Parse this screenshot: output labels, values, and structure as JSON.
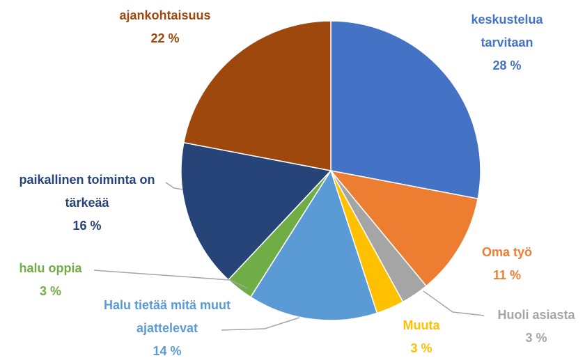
{
  "chart_data": {
    "type": "pie",
    "categories": [
      "keskustelua tarvitaan",
      "Oma työ",
      "Huoli asiasta",
      "Muuta",
      "Halu tietää mitä muut ajattelevat",
      "halu oppia",
      "paikallinen toiminta on tärkeää",
      "ajankohtaisuus"
    ],
    "values": [
      28,
      11,
      3,
      3,
      14,
      3,
      16,
      22
    ],
    "value_labels": [
      "28 %",
      "11 %",
      "3 %",
      "3 %",
      "14 %",
      "3 %",
      "16 %",
      "22 %"
    ],
    "colors": [
      "#4472c4",
      "#ed7d31",
      "#a5a5a5",
      "#ffc000",
      "#5b9bd5",
      "#70ad47",
      "#264478",
      "#9e480e"
    ]
  }
}
